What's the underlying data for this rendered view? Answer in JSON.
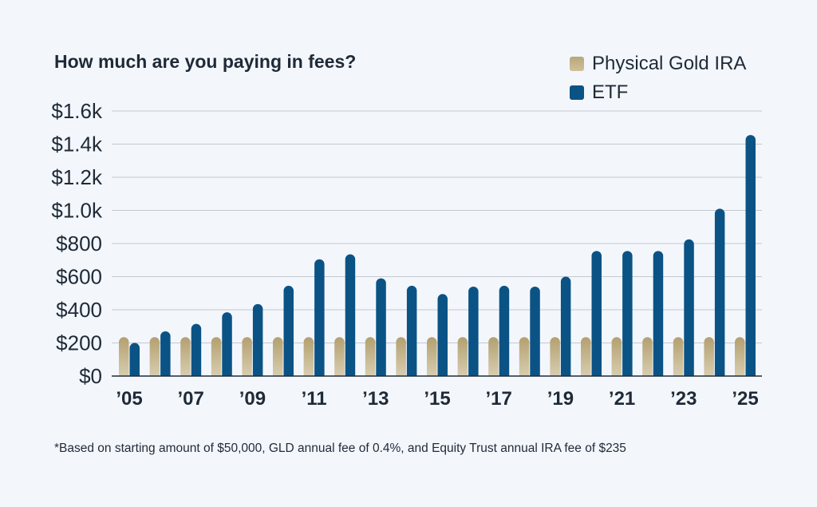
{
  "chart_data": {
    "type": "bar",
    "title": "How much are you paying in fees?",
    "footnote": "*Based on starting amount of $50,000, GLD annual fee of 0.4%, and Equity Trust annual IRA fee of $235",
    "x": [
      2005,
      2006,
      2007,
      2008,
      2009,
      2010,
      2011,
      2012,
      2013,
      2014,
      2015,
      2016,
      2017,
      2018,
      2019,
      2020,
      2021,
      2022,
      2023,
      2024,
      2025
    ],
    "x_tick_labels": [
      "’05",
      "’07",
      "’09",
      "’11",
      "’13",
      "’15",
      "’17",
      "’19",
      "’21",
      "’23",
      "’25"
    ],
    "x_tick_values": [
      2005,
      2007,
      2009,
      2011,
      2013,
      2015,
      2017,
      2019,
      2021,
      2023,
      2025
    ],
    "y_ticks": [
      0,
      200,
      400,
      600,
      800,
      1000,
      1200,
      1400,
      1600
    ],
    "y_tick_labels": [
      "$0",
      "$200",
      "$400",
      "$600",
      "$800",
      "$1.0k",
      "$1.2k",
      "$1.4k",
      "$1.6k"
    ],
    "ylim": [
      0,
      1600
    ],
    "grid": true,
    "legend_position": "top-right",
    "series": [
      {
        "name": "Physical Gold IRA",
        "color": "#b8a77a",
        "values": [
          235,
          235,
          235,
          235,
          235,
          235,
          235,
          235,
          235,
          235,
          235,
          235,
          235,
          235,
          235,
          235,
          235,
          235,
          235,
          235,
          235
        ]
      },
      {
        "name": "ETF",
        "color": "#0b5385",
        "values": [
          200,
          270,
          315,
          385,
          435,
          545,
          705,
          735,
          590,
          545,
          495,
          540,
          545,
          540,
          600,
          755,
          755,
          755,
          825,
          1010,
          1455
        ]
      }
    ]
  }
}
